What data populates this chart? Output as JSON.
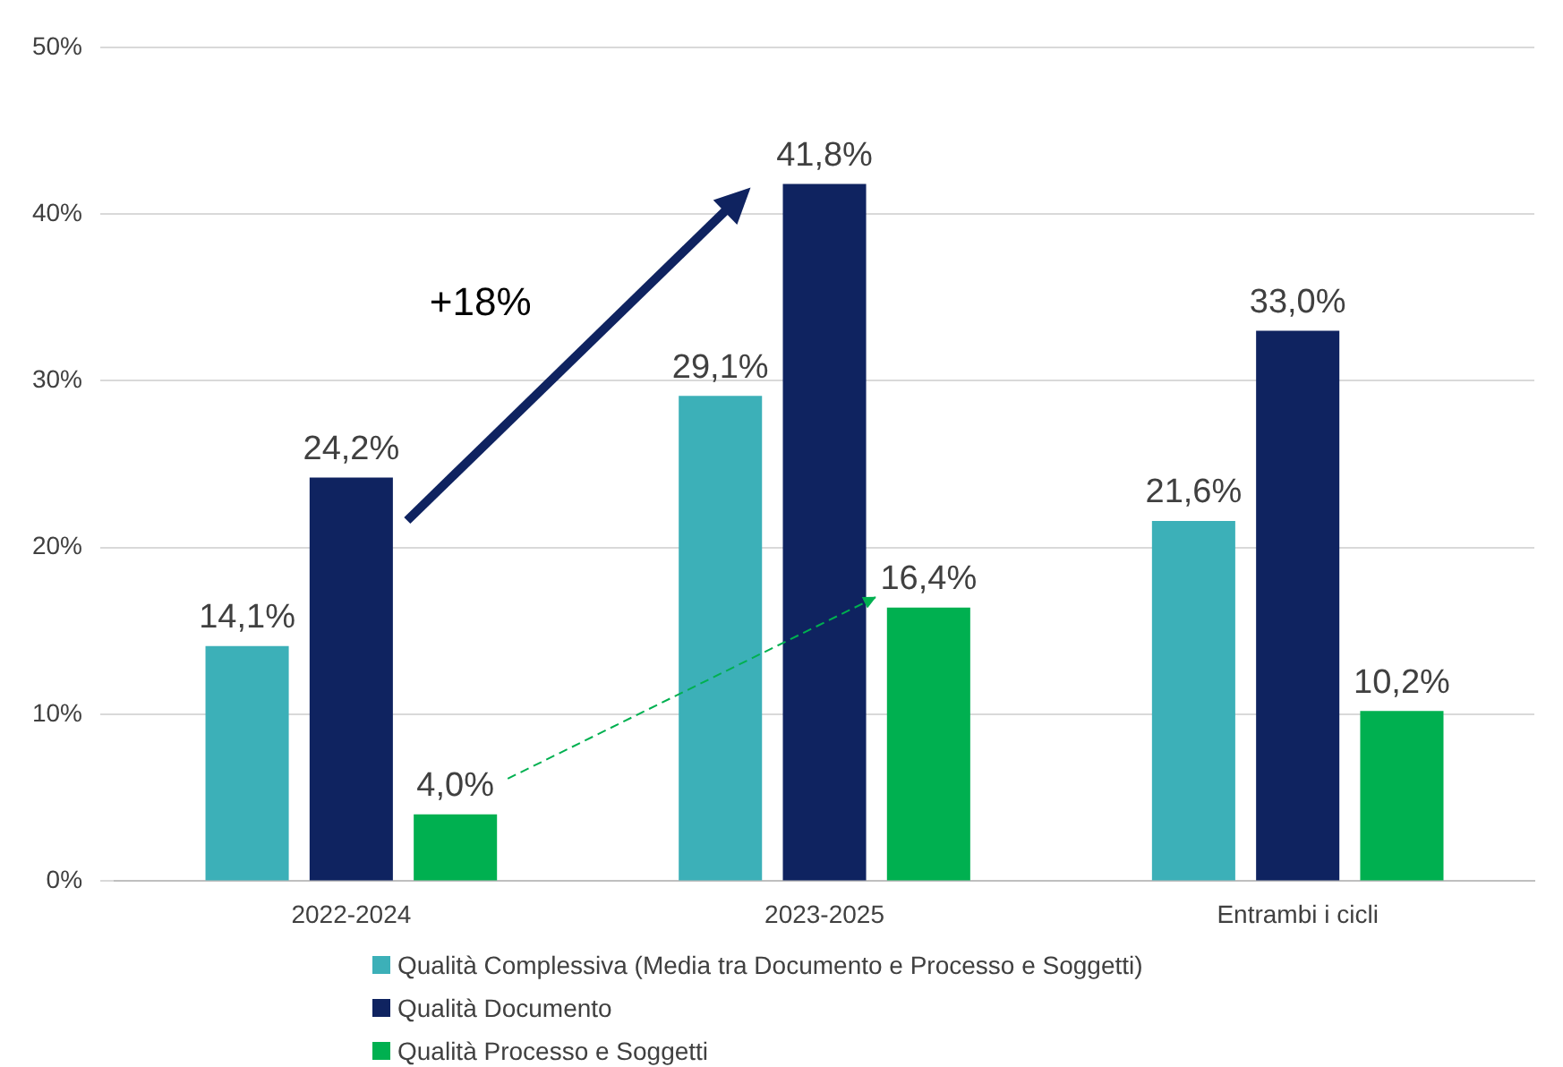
{
  "chart_data": {
    "type": "bar",
    "categories": [
      "2022-2024",
      "2023-2025",
      "Entrambi i cicli"
    ],
    "series": [
      {
        "name": "Qualità Complessiva (Media tra Documento e Processo e Soggetti)",
        "color": "#3cb0b8",
        "values": [
          14.1,
          29.1,
          21.6
        ],
        "value_labels": [
          "14,1%",
          "29,1%",
          "21,6%"
        ]
      },
      {
        "name": "Qualità Documento",
        "color": "#0f2360",
        "values": [
          24.2,
          41.8,
          33.0
        ],
        "value_labels": [
          "24,2%",
          "41,8%",
          "33,0%"
        ]
      },
      {
        "name": "Qualità Processo e Soggetti",
        "color": "#00b050",
        "values": [
          4.0,
          16.4,
          10.2
        ],
        "value_labels": [
          "4,0%",
          "16,4%",
          "10,2%"
        ]
      }
    ],
    "ylim": [
      0,
      50
    ],
    "yticks": [
      {
        "value": 0,
        "label": "0%"
      },
      {
        "value": 10,
        "label": "10%"
      },
      {
        "value": 20,
        "label": "20%"
      },
      {
        "value": 30,
        "label": "30%"
      },
      {
        "value": 40,
        "label": "40%"
      },
      {
        "value": 50,
        "label": "50%"
      }
    ],
    "grid": "y",
    "legend": "bottom",
    "annotations": [
      "+18%"
    ]
  }
}
